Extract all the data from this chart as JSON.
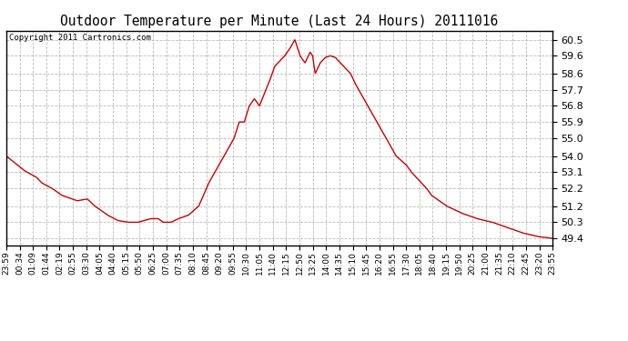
{
  "title": "Outdoor Temperature per Minute (Last 24 Hours) 20111016",
  "copyright": "Copyright 2011 Cartronics.com",
  "line_color": "#cc0000",
  "background_color": "#ffffff",
  "grid_color": "#aaaaaa",
  "yticks": [
    49.4,
    50.3,
    51.2,
    52.2,
    53.1,
    54.0,
    55.0,
    55.9,
    56.8,
    57.7,
    58.6,
    59.6,
    60.5
  ],
  "ylim": [
    49.0,
    61.0
  ],
  "xtick_labels": [
    "23:59",
    "00:34",
    "01:09",
    "01:44",
    "02:19",
    "02:55",
    "03:30",
    "04:05",
    "04:40",
    "05:15",
    "05:50",
    "06:25",
    "07:00",
    "07:35",
    "08:10",
    "08:45",
    "09:20",
    "09:55",
    "10:30",
    "11:05",
    "11:40",
    "12:15",
    "12:50",
    "13:25",
    "14:00",
    "14:35",
    "15:10",
    "15:45",
    "16:20",
    "16:55",
    "17:30",
    "18:05",
    "18:40",
    "19:15",
    "19:50",
    "20:25",
    "21:00",
    "21:35",
    "22:10",
    "22:45",
    "23:20",
    "23:55"
  ],
  "key_points": [
    [
      0,
      54.0
    ],
    [
      35,
      53.2
    ],
    [
      60,
      52.8
    ],
    [
      70,
      52.5
    ],
    [
      90,
      52.2
    ],
    [
      110,
      51.8
    ],
    [
      140,
      51.5
    ],
    [
      160,
      51.6
    ],
    [
      175,
      51.2
    ],
    [
      200,
      50.7
    ],
    [
      220,
      50.4
    ],
    [
      240,
      50.3
    ],
    [
      260,
      50.3
    ],
    [
      285,
      50.5
    ],
    [
      300,
      50.5
    ],
    [
      310,
      50.3
    ],
    [
      325,
      50.3
    ],
    [
      340,
      50.5
    ],
    [
      360,
      50.7
    ],
    [
      380,
      51.2
    ],
    [
      400,
      52.5
    ],
    [
      420,
      53.5
    ],
    [
      440,
      54.5
    ],
    [
      450,
      55.0
    ],
    [
      460,
      55.9
    ],
    [
      470,
      55.9
    ],
    [
      480,
      56.8
    ],
    [
      490,
      57.2
    ],
    [
      500,
      56.8
    ],
    [
      510,
      57.5
    ],
    [
      520,
      58.2
    ],
    [
      530,
      59.0
    ],
    [
      540,
      59.3
    ],
    [
      550,
      59.6
    ],
    [
      560,
      60.0
    ],
    [
      570,
      60.5
    ],
    [
      580,
      59.6
    ],
    [
      590,
      59.2
    ],
    [
      600,
      59.8
    ],
    [
      605,
      59.6
    ],
    [
      610,
      58.6
    ],
    [
      620,
      59.2
    ],
    [
      630,
      59.5
    ],
    [
      640,
      59.6
    ],
    [
      650,
      59.5
    ],
    [
      660,
      59.2
    ],
    [
      670,
      58.9
    ],
    [
      680,
      58.6
    ],
    [
      690,
      58.0
    ],
    [
      700,
      57.5
    ],
    [
      710,
      57.0
    ],
    [
      720,
      56.5
    ],
    [
      730,
      56.0
    ],
    [
      740,
      55.5
    ],
    [
      750,
      55.0
    ],
    [
      760,
      54.5
    ],
    [
      770,
      54.0
    ],
    [
      790,
      53.5
    ],
    [
      800,
      53.1
    ],
    [
      810,
      52.8
    ],
    [
      820,
      52.5
    ],
    [
      830,
      52.2
    ],
    [
      840,
      51.8
    ],
    [
      855,
      51.5
    ],
    [
      870,
      51.2
    ],
    [
      900,
      50.8
    ],
    [
      930,
      50.5
    ],
    [
      960,
      50.3
    ],
    [
      990,
      50.0
    ],
    [
      1020,
      49.7
    ],
    [
      1050,
      49.5
    ],
    [
      1079,
      49.4
    ]
  ]
}
